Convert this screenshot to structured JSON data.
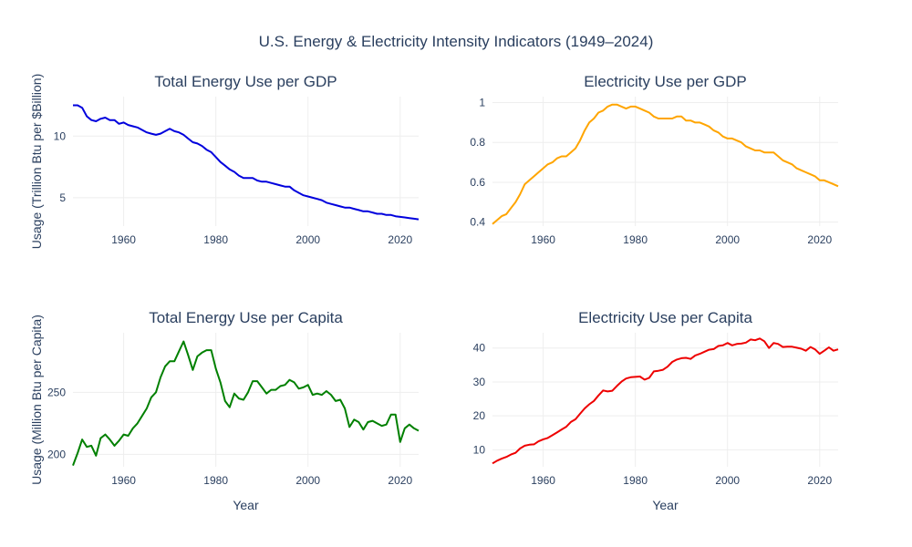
{
  "title": "U.S. Energy & Electricity Intensity Indicators (1949–2024)",
  "chart_data": [
    {
      "type": "line",
      "title": "Total Energy Use per GDP",
      "xlabel": "",
      "ylabel": "Usage (Trillion Btu per $Billion)",
      "color": "#0000dd",
      "xlim": [
        1949,
        2024
      ],
      "ylim": [
        2.7,
        13.2
      ],
      "xticks": [
        1960,
        1980,
        2000,
        2020
      ],
      "yticks": [
        5,
        10
      ],
      "ytick_labels": [
        "5",
        "10"
      ],
      "x": [
        1949,
        1950,
        1951,
        1952,
        1953,
        1954,
        1955,
        1956,
        1957,
        1958,
        1959,
        1960,
        1961,
        1962,
        1963,
        1964,
        1965,
        1966,
        1967,
        1968,
        1969,
        1970,
        1971,
        1972,
        1973,
        1974,
        1975,
        1976,
        1977,
        1978,
        1979,
        1980,
        1981,
        1982,
        1983,
        1984,
        1985,
        1986,
        1987,
        1988,
        1989,
        1990,
        1991,
        1992,
        1993,
        1994,
        1995,
        1996,
        1997,
        1998,
        1999,
        2000,
        2001,
        2002,
        2003,
        2004,
        2005,
        2006,
        2007,
        2008,
        2009,
        2010,
        2011,
        2012,
        2013,
        2014,
        2015,
        2016,
        2017,
        2018,
        2019,
        2020,
        2021,
        2022,
        2023,
        2024
      ],
      "y": [
        12.5,
        12.5,
        12.3,
        11.6,
        11.3,
        11.2,
        11.4,
        11.5,
        11.3,
        11.3,
        11.0,
        11.1,
        10.9,
        10.8,
        10.7,
        10.5,
        10.3,
        10.2,
        10.1,
        10.2,
        10.4,
        10.6,
        10.4,
        10.3,
        10.1,
        9.8,
        9.5,
        9.4,
        9.2,
        8.9,
        8.7,
        8.3,
        7.9,
        7.6,
        7.3,
        7.1,
        6.8,
        6.6,
        6.6,
        6.6,
        6.4,
        6.3,
        6.3,
        6.2,
        6.1,
        6.0,
        5.9,
        5.9,
        5.6,
        5.4,
        5.2,
        5.1,
        5.0,
        4.9,
        4.8,
        4.6,
        4.5,
        4.4,
        4.3,
        4.2,
        4.2,
        4.1,
        4.0,
        3.9,
        3.9,
        3.8,
        3.7,
        3.7,
        3.6,
        3.6,
        3.5,
        3.45,
        3.4,
        3.35,
        3.3,
        3.25
      ]
    },
    {
      "type": "line",
      "title": "Electricity Use per GDP",
      "xlabel": "",
      "ylabel": "",
      "color": "#ffa500",
      "xlim": [
        1949,
        2024
      ],
      "ylim": [
        0.38,
        1.03
      ],
      "xticks": [
        1960,
        1980,
        2000,
        2020
      ],
      "yticks": [
        0.4,
        0.6,
        0.8,
        1.0
      ],
      "ytick_labels": [
        "0.4",
        "0.6",
        "0.8",
        "1"
      ],
      "x": [
        1949,
        1950,
        1951,
        1952,
        1953,
        1954,
        1955,
        1956,
        1957,
        1958,
        1959,
        1960,
        1961,
        1962,
        1963,
        1964,
        1965,
        1966,
        1967,
        1968,
        1969,
        1970,
        1971,
        1972,
        1973,
        1974,
        1975,
        1976,
        1977,
        1978,
        1979,
        1980,
        1981,
        1982,
        1983,
        1984,
        1985,
        1986,
        1987,
        1988,
        1989,
        1990,
        1991,
        1992,
        1993,
        1994,
        1995,
        1996,
        1997,
        1998,
        1999,
        2000,
        2001,
        2002,
        2003,
        2004,
        2005,
        2006,
        2007,
        2008,
        2009,
        2010,
        2011,
        2012,
        2013,
        2014,
        2015,
        2016,
        2017,
        2018,
        2019,
        2020,
        2021,
        2022,
        2023,
        2024
      ],
      "y": [
        0.39,
        0.41,
        0.43,
        0.44,
        0.47,
        0.5,
        0.54,
        0.59,
        0.61,
        0.63,
        0.65,
        0.67,
        0.69,
        0.7,
        0.72,
        0.73,
        0.73,
        0.75,
        0.77,
        0.81,
        0.86,
        0.9,
        0.92,
        0.95,
        0.96,
        0.98,
        0.99,
        0.99,
        0.98,
        0.97,
        0.98,
        0.98,
        0.97,
        0.96,
        0.95,
        0.93,
        0.92,
        0.92,
        0.92,
        0.92,
        0.93,
        0.93,
        0.91,
        0.91,
        0.9,
        0.9,
        0.89,
        0.88,
        0.86,
        0.85,
        0.83,
        0.82,
        0.82,
        0.81,
        0.8,
        0.78,
        0.77,
        0.76,
        0.76,
        0.75,
        0.75,
        0.75,
        0.73,
        0.71,
        0.7,
        0.69,
        0.67,
        0.66,
        0.65,
        0.64,
        0.63,
        0.61,
        0.61,
        0.6,
        0.59,
        0.58
      ]
    },
    {
      "type": "line",
      "title": "Total Energy Use per Capita",
      "xlabel": "Year",
      "ylabel": "Usage (Million Btu per Capita)",
      "color": "#008000",
      "xlim": [
        1949,
        2024
      ],
      "ylim": [
        190,
        298
      ],
      "xticks": [
        1960,
        1980,
        2000,
        2020
      ],
      "yticks": [
        200,
        250
      ],
      "ytick_labels": [
        "200",
        "250"
      ],
      "x": [
        1949,
        1950,
        1951,
        1952,
        1953,
        1954,
        1955,
        1956,
        1957,
        1958,
        1959,
        1960,
        1961,
        1962,
        1963,
        1964,
        1965,
        1966,
        1967,
        1968,
        1969,
        1970,
        1971,
        1972,
        1973,
        1974,
        1975,
        1976,
        1977,
        1978,
        1979,
        1980,
        1981,
        1982,
        1983,
        1984,
        1985,
        1986,
        1987,
        1988,
        1989,
        1990,
        1991,
        1992,
        1993,
        1994,
        1995,
        1996,
        1997,
        1998,
        1999,
        2000,
        2001,
        2002,
        2003,
        2004,
        2005,
        2006,
        2007,
        2008,
        2009,
        2010,
        2011,
        2012,
        2013,
        2014,
        2015,
        2016,
        2017,
        2018,
        2019,
        2020,
        2021,
        2022,
        2023,
        2024
      ],
      "y": [
        191,
        201,
        212,
        206,
        207,
        199,
        213,
        216,
        212,
        207,
        211,
        216,
        215,
        221,
        225,
        231,
        237,
        246,
        250,
        262,
        271,
        275,
        275,
        283,
        291,
        280,
        268,
        279,
        282,
        284,
        284,
        269,
        258,
        243,
        238,
        249,
        245,
        244,
        250,
        259,
        259,
        254,
        249,
        252,
        252,
        255,
        256,
        260,
        258,
        253,
        254,
        256,
        248,
        249,
        248,
        251,
        248,
        243,
        244,
        237,
        222,
        228,
        226,
        220,
        226,
        227,
        225,
        223,
        224,
        232,
        232,
        210,
        221,
        224,
        221,
        219
      ]
    },
    {
      "type": "line",
      "title": "Electricity Use per Capita",
      "xlabel": "Year",
      "ylabel": "",
      "color": "#ee0000",
      "xlim": [
        1949,
        2024
      ],
      "ylim": [
        5,
        44.5
      ],
      "xticks": [
        1960,
        1980,
        2000,
        2020
      ],
      "yticks": [
        10,
        20,
        30,
        40
      ],
      "ytick_labels": [
        "10",
        "20",
        "30",
        "40"
      ],
      "x": [
        1949,
        1950,
        1951,
        1952,
        1953,
        1954,
        1955,
        1956,
        1957,
        1958,
        1959,
        1960,
        1961,
        1962,
        1963,
        1964,
        1965,
        1966,
        1967,
        1968,
        1969,
        1970,
        1971,
        1972,
        1973,
        1974,
        1975,
        1976,
        1977,
        1978,
        1979,
        1980,
        1981,
        1982,
        1983,
        1984,
        1985,
        1986,
        1987,
        1988,
        1989,
        1990,
        1991,
        1992,
        1993,
        1994,
        1995,
        1996,
        1997,
        1998,
        1999,
        2000,
        2001,
        2002,
        2003,
        2004,
        2005,
        2006,
        2007,
        2008,
        2009,
        2010,
        2011,
        2012,
        2013,
        2014,
        2015,
        2016,
        2017,
        2018,
        2019,
        2020,
        2021,
        2022,
        2023,
        2024
      ],
      "y": [
        6.0,
        6.8,
        7.4,
        7.9,
        8.6,
        9.1,
        10.4,
        11.2,
        11.5,
        11.6,
        12.5,
        13.1,
        13.5,
        14.3,
        15.1,
        16.0,
        16.8,
        18.2,
        19.0,
        20.6,
        22.2,
        23.4,
        24.4,
        26.0,
        27.5,
        27.2,
        27.4,
        28.8,
        30.1,
        31.0,
        31.4,
        31.5,
        31.6,
        30.7,
        31.2,
        33.1,
        33.3,
        33.6,
        34.5,
        35.9,
        36.6,
        37.0,
        37.1,
        36.8,
        37.8,
        38.3,
        38.9,
        39.5,
        39.7,
        40.6,
        40.8,
        41.5,
        40.8,
        41.2,
        41.3,
        41.6,
        42.5,
        42.3,
        42.8,
        42.0,
        40.0,
        41.5,
        41.2,
        40.3,
        40.4,
        40.4,
        40.1,
        39.8,
        39.2,
        40.3,
        39.6,
        38.3,
        39.2,
        40.2,
        39.2,
        39.6
      ]
    }
  ]
}
